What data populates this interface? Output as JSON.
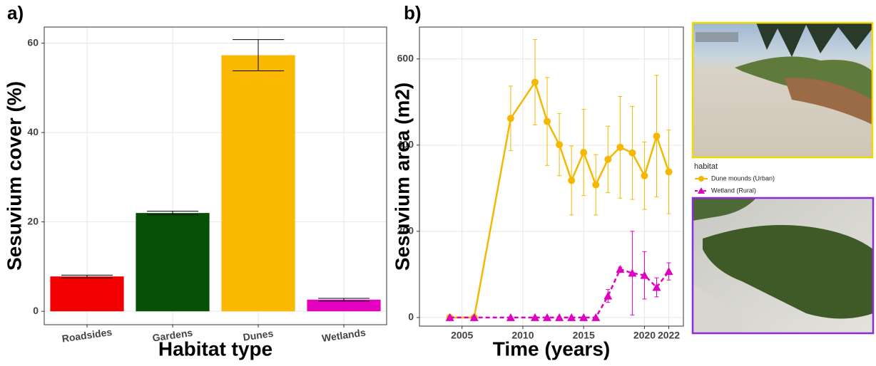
{
  "chart_data": [
    {
      "type": "bar",
      "panel_label": "a)",
      "x_label": "Habitat type",
      "y_label": "Sesuvium cover (%)",
      "categories": [
        "Roadsides",
        "Gardens",
        "Dunes",
        "Wetlands"
      ],
      "values": [
        7.8,
        22.0,
        57.3,
        2.6
      ],
      "errors": [
        0.3,
        0.4,
        3.5,
        0.3
      ],
      "colors": [
        "#f20000",
        "#075107",
        "#fbb800",
        "#e600c0"
      ],
      "ylim": [
        -3,
        63.6
      ],
      "yticks": [
        0,
        20,
        40,
        60
      ],
      "grid": true
    },
    {
      "type": "line",
      "panel_label": "b)",
      "x_label": "Time (years)",
      "y_label": "Sesuvium area (m2)",
      "x": [
        2004,
        2006,
        2009,
        2011,
        2012,
        2013,
        2014,
        2015,
        2016,
        2017,
        2018,
        2019,
        2020,
        2021,
        2022
      ],
      "legend_title": "habitat",
      "series": [
        {
          "name": "Dune mounds (Urban)",
          "color": "#f5b800",
          "marker": "circle",
          "dash": false,
          "values": [
            0,
            0,
            462,
            546,
            455,
            401,
            318,
            383,
            308,
            367,
            395,
            382,
            329,
            421,
            338
          ],
          "errors": [
            0,
            0,
            75,
            99,
            102,
            72,
            80,
            100,
            70,
            77,
            118,
            108,
            78,
            141,
            97
          ]
        },
        {
          "name": "Wetland (Rural)",
          "color": "#e000c0",
          "marker": "triangle",
          "dash": true,
          "values": [
            0,
            0,
            0,
            0,
            0,
            0,
            0,
            0,
            0,
            50,
            112,
            103,
            98,
            70,
            107
          ],
          "errors": [
            0,
            0,
            0,
            0,
            0,
            0,
            0,
            0,
            0,
            15,
            5,
            97,
            55,
            22,
            20
          ]
        }
      ],
      "xlim": [
        2001.5,
        2023.2
      ],
      "xticks": [
        2005,
        2010,
        2015,
        2020,
        2022
      ],
      "ylim": [
        -20,
        674
      ],
      "yticks": [
        0,
        200,
        400,
        600
      ],
      "grid": true
    }
  ]
}
